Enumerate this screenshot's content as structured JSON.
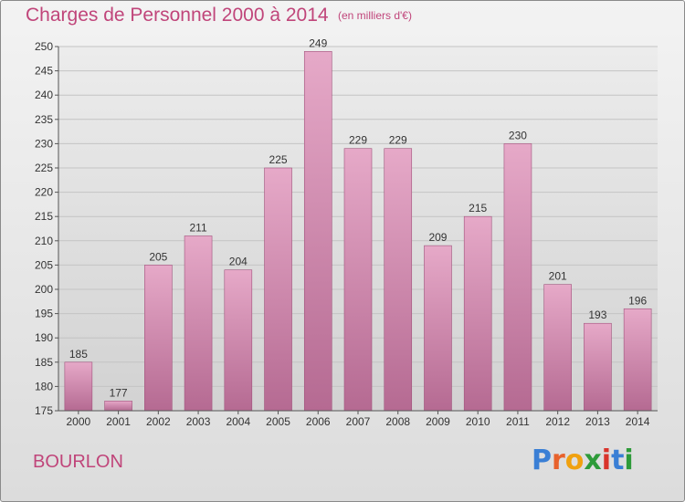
{
  "chart_data": {
    "type": "bar",
    "title": "Charges de Personnel 2000 à 2014",
    "subtitle": "(en milliers d'€)",
    "categories": [
      "2000",
      "2001",
      "2002",
      "2003",
      "2004",
      "2005",
      "2006",
      "2007",
      "2008",
      "2009",
      "2010",
      "2011",
      "2012",
      "2013",
      "2014"
    ],
    "values": [
      185,
      177,
      205,
      211,
      204,
      225,
      249,
      229,
      229,
      209,
      215,
      230,
      201,
      193,
      196
    ],
    "ylim": [
      175,
      250
    ],
    "yticks": [
      175,
      180,
      185,
      190,
      195,
      200,
      205,
      210,
      215,
      220,
      225,
      230,
      235,
      240,
      245,
      250
    ],
    "grid": true,
    "xlabel": "",
    "ylabel": "",
    "bar_color": "#d98cb4"
  },
  "commune": "BOURLON",
  "logo": {
    "letters": [
      "P",
      "r",
      "o",
      "x",
      "i",
      "t",
      "i"
    ],
    "colors": [
      "#3a7fd5",
      "#e8622c",
      "#f0a10f",
      "#2e9b3a",
      "#d9342b",
      "#3a7fd5",
      "#2e9b3a"
    ]
  }
}
